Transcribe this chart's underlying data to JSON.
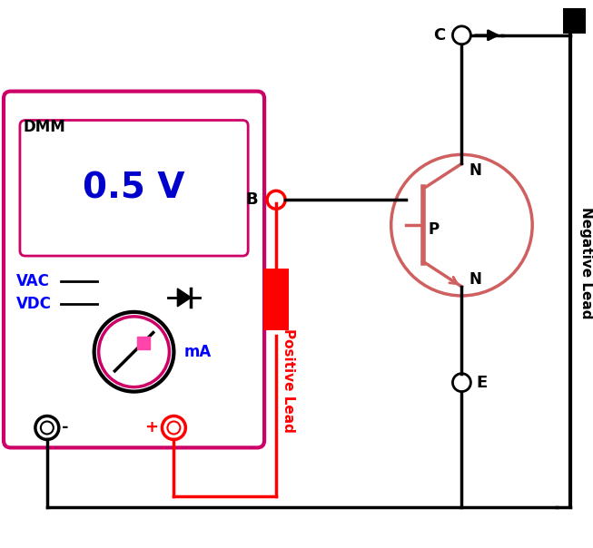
{
  "fig_width": 6.53,
  "fig_height": 6.04,
  "dpi": 100,
  "bg_color": "#ffffff",
  "dmm_box_color": "#cc0066",
  "dmm_label": "DMM",
  "voltage_label": "0.5 V",
  "voltage_color": "#0000cc",
  "vac_label": "VAC",
  "vdc_label": "VDC",
  "ma_label": "mA",
  "label_color": "#0000ff",
  "transistor_color": "#d06060",
  "red_color": "#ff0000",
  "black_color": "#000000",
  "pink_color": "#cc0066",
  "positive_lead_label": "Positive Lead",
  "negative_lead_label": "Negative Lead"
}
